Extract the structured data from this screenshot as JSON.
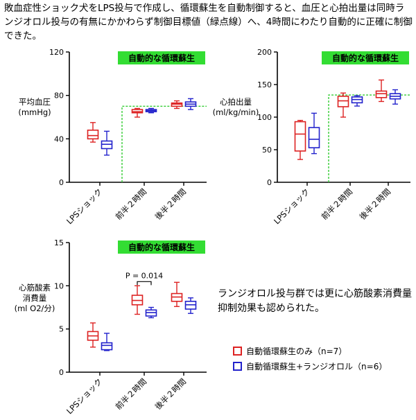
{
  "header": {
    "text": "敗血症性ショック犬をLPS投与で作成し、循環蘇生を自動制御すると、血圧と心拍出量は同時ランジオロル投与の有無にかかわらず制御目標値（緑点線）へ、4時間にわたり自動的に正確に制御できた。"
  },
  "note": {
    "text": "ランジオロル投与群では更に心筋酸素消費量抑制効果も認められた。"
  },
  "legend": {
    "items": [
      {
        "label": "自動循環蘇生のみ（n=7）",
        "color": "#dd2222"
      },
      {
        "label": "自動循環蘇生+ランジオロル（n=6）",
        "color": "#2222cc"
      }
    ]
  },
  "colors": {
    "series_a": "#dd2222",
    "series_b": "#2222cc",
    "target": "#33cc33",
    "banner": "#33dd33"
  },
  "chart_data": [
    {
      "type": "box",
      "banner": "自動的な循環蘇生",
      "ylabel_lines": [
        "平均血圧",
        "(mmHg)"
      ],
      "ylim": [
        0,
        120
      ],
      "yticks": [
        0,
        40,
        80,
        120
      ],
      "categories": [
        "LPSショック",
        "前半２時間",
        "後半２時間"
      ],
      "target": {
        "value": 70,
        "from_category_index": 1
      },
      "series": [
        {
          "name": "自動循環蘇生のみ（n=7）",
          "boxes": [
            {
              "min": 37,
              "q1": 40,
              "median": 43,
              "q3": 48,
              "max": 55
            },
            {
              "min": 60,
              "q1": 64,
              "median": 65,
              "q3": 67,
              "max": 68
            },
            {
              "min": 68,
              "q1": 70,
              "median": 72,
              "q3": 73,
              "max": 75
            }
          ]
        },
        {
          "name": "自動循環蘇生+ランジオロル（n=6）",
          "boxes": [
            {
              "min": 25,
              "q1": 31,
              "median": 35,
              "q3": 38,
              "max": 47
            },
            {
              "min": 64,
              "q1": 65,
              "median": 66,
              "q3": 67,
              "max": 68
            },
            {
              "min": 67,
              "q1": 70,
              "median": 72,
              "q3": 74,
              "max": 77
            }
          ]
        }
      ]
    },
    {
      "type": "box",
      "banner": "自動的な循環蘇生",
      "ylabel_lines": [
        "心拍出量",
        "(ml/kg/min)"
      ],
      "ylim": [
        0,
        200
      ],
      "yticks": [
        0,
        50,
        100,
        150,
        200
      ],
      "categories": [
        "LPSショック",
        "前半２時間",
        "後半２時間"
      ],
      "target": {
        "value": 134,
        "from_category_index": 1
      },
      "series": [
        {
          "name": "自動循環蘇生のみ（n=7）",
          "boxes": [
            {
              "min": 35,
              "q1": 48,
              "median": 74,
              "q3": 93,
              "max": 95
            },
            {
              "min": 100,
              "q1": 116,
              "median": 125,
              "q3": 132,
              "max": 137
            },
            {
              "min": 124,
              "q1": 130,
              "median": 136,
              "q3": 140,
              "max": 157
            }
          ]
        },
        {
          "name": "自動循環蘇生+ランジオロル（n=6）",
          "boxes": [
            {
              "min": 44,
              "q1": 53,
              "median": 66,
              "q3": 84,
              "max": 106
            },
            {
              "min": 117,
              "q1": 122,
              "median": 127,
              "q3": 131,
              "max": 133
            },
            {
              "min": 120,
              "q1": 128,
              "median": 132,
              "q3": 136,
              "max": 142
            }
          ]
        }
      ]
    },
    {
      "type": "box",
      "banner": "自動的な循環蘇生",
      "ylabel_lines": [
        "心筋酸素",
        "消費量",
        "(ml O2/分)"
      ],
      "ylim": [
        0,
        15
      ],
      "yticks": [
        0,
        5,
        10,
        15
      ],
      "categories": [
        "LPSショック",
        "前半２時間",
        "後半２時間"
      ],
      "annotation": {
        "text": "P = 0.014",
        "between_category_index": 1
      },
      "series": [
        {
          "name": "自動循環蘇生のみ（n=7）",
          "boxes": [
            {
              "min": 2.9,
              "q1": 3.7,
              "median": 4.2,
              "q3": 4.7,
              "max": 5.7
            },
            {
              "min": 6.7,
              "q1": 7.8,
              "median": 8.3,
              "q3": 8.9,
              "max": 10.0
            },
            {
              "min": 7.6,
              "q1": 8.2,
              "median": 8.7,
              "q3": 9.1,
              "max": 10.4
            }
          ]
        },
        {
          "name": "自動循環蘇生+ランジオロル（n=6）",
          "boxes": [
            {
              "min": 2.5,
              "q1": 2.6,
              "median": 3.1,
              "q3": 3.4,
              "max": 4.5
            },
            {
              "min": 6.3,
              "q1": 6.5,
              "median": 6.9,
              "q3": 7.2,
              "max": 7.5
            },
            {
              "min": 6.8,
              "q1": 7.3,
              "median": 7.8,
              "q3": 8.2,
              "max": 8.6
            }
          ]
        }
      ]
    }
  ]
}
